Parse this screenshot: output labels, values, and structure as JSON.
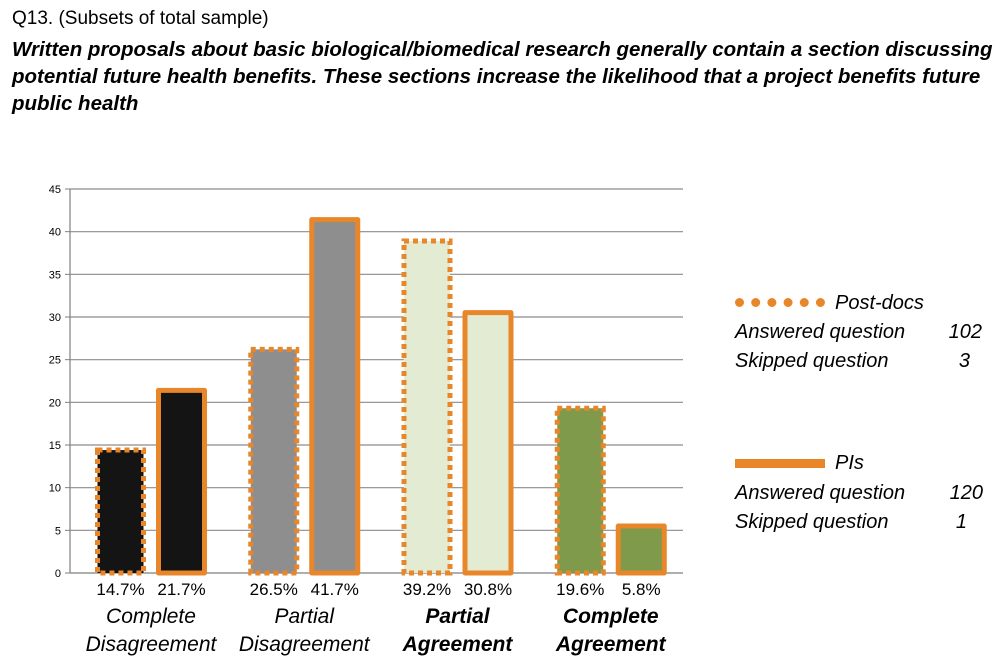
{
  "question": {
    "number": "Q13. (Subsets of total sample)",
    "text": "Written proposals about basic biological/biomedical research generally contain a section discussing potential future health benefits. These sections increase the likelihood that a project benefits future public health"
  },
  "legend": [
    {
      "name": "Post-docs",
      "style": "dotted",
      "answered_label": "Answered question",
      "answered_value": "102",
      "skipped_label": "Skipped question",
      "skipped_value": "3"
    },
    {
      "name": "PIs",
      "style": "solid",
      "answered_label": "Answered question",
      "answered_value": "120",
      "skipped_label": "Skipped question",
      "skipped_value": "1"
    }
  ],
  "chart_data": {
    "type": "bar",
    "title": "",
    "xlabel": "",
    "ylabel": "",
    "ylim": [
      0,
      45
    ],
    "yticks": [
      0,
      5,
      10,
      15,
      20,
      25,
      30,
      35,
      40,
      45
    ],
    "grid": true,
    "legend_position": "right",
    "categories": [
      {
        "label": [
          "Complete",
          "Disagreement"
        ],
        "bold": false,
        "fill": "#141414"
      },
      {
        "label": [
          "Partial",
          "Disagreement"
        ],
        "bold": false,
        "fill": "#8E8E8E"
      },
      {
        "label": [
          "Partial",
          "Agreement"
        ],
        "bold": true,
        "fill": "#E4EBD3"
      },
      {
        "label": [
          "Complete",
          "Agreement"
        ],
        "bold": true,
        "fill": "#7E9A4A"
      }
    ],
    "series": [
      {
        "name": "Post-docs",
        "values": [
          14.7,
          26.5,
          39.2,
          19.6
        ],
        "labels": [
          "14.7%",
          "26.5%",
          "39.2%",
          "19.6%"
        ],
        "outline": "#E8862A",
        "outline_style": "dotted"
      },
      {
        "name": "PIs",
        "values": [
          21.7,
          41.7,
          30.8,
          5.8
        ],
        "labels": [
          "21.7%",
          "41.7%",
          "30.8%",
          "5.8%"
        ],
        "outline": "#E8862A",
        "outline_style": "solid"
      }
    ],
    "colors": {
      "axis": "#7f7f7f",
      "grid": "#8c8c8c",
      "outline": "#E8862A"
    }
  }
}
